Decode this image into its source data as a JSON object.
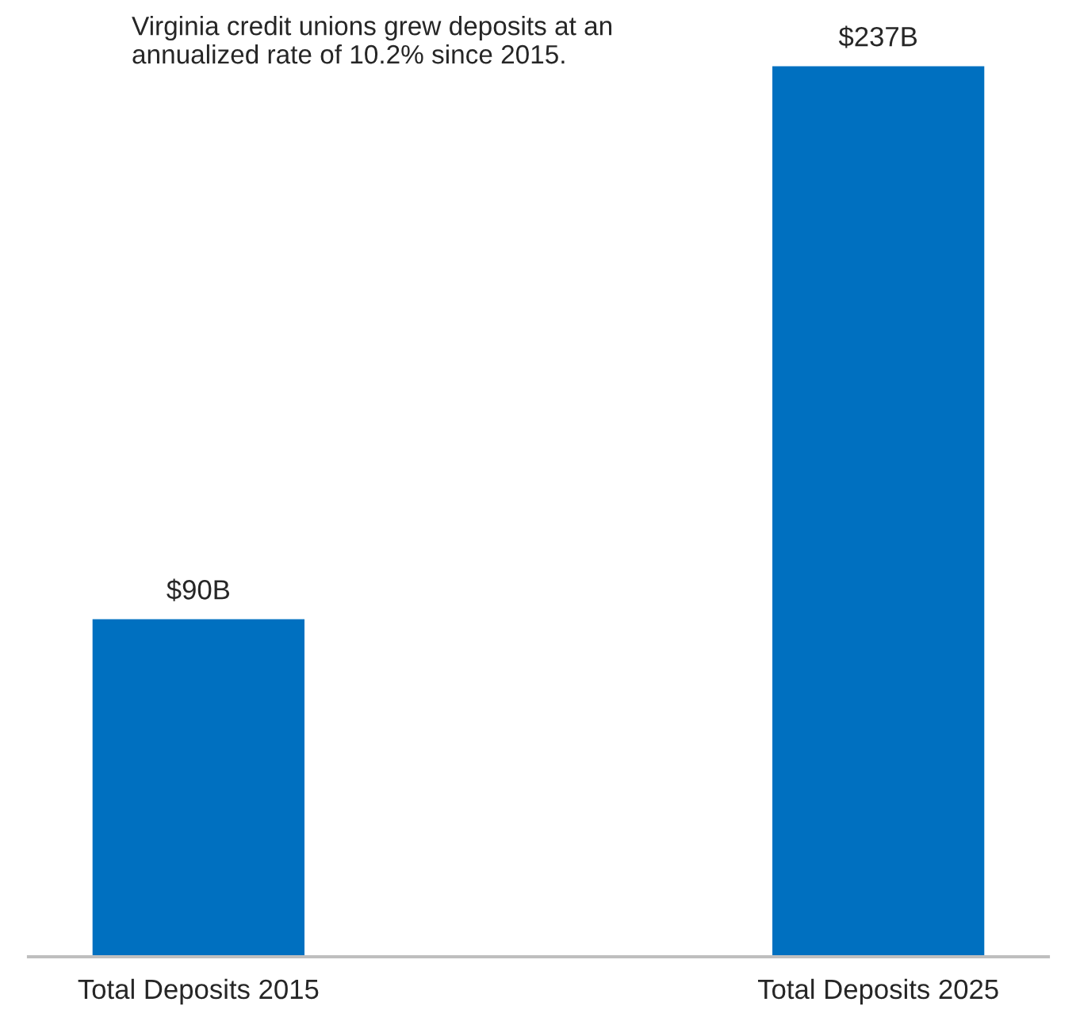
{
  "chart_data": {
    "type": "bar",
    "categories": [
      "Total Deposits 2015",
      "Total Deposits 2025"
    ],
    "values": [
      90,
      237
    ],
    "color": "#0070c0",
    "value_labels": [
      "$90B",
      "$237B"
    ],
    "annotations": [
      "Virginia credit unions grew deposits at an annualized rate of 10.2% since 2015."
    ],
    "grid": false,
    "legend": false
  }
}
